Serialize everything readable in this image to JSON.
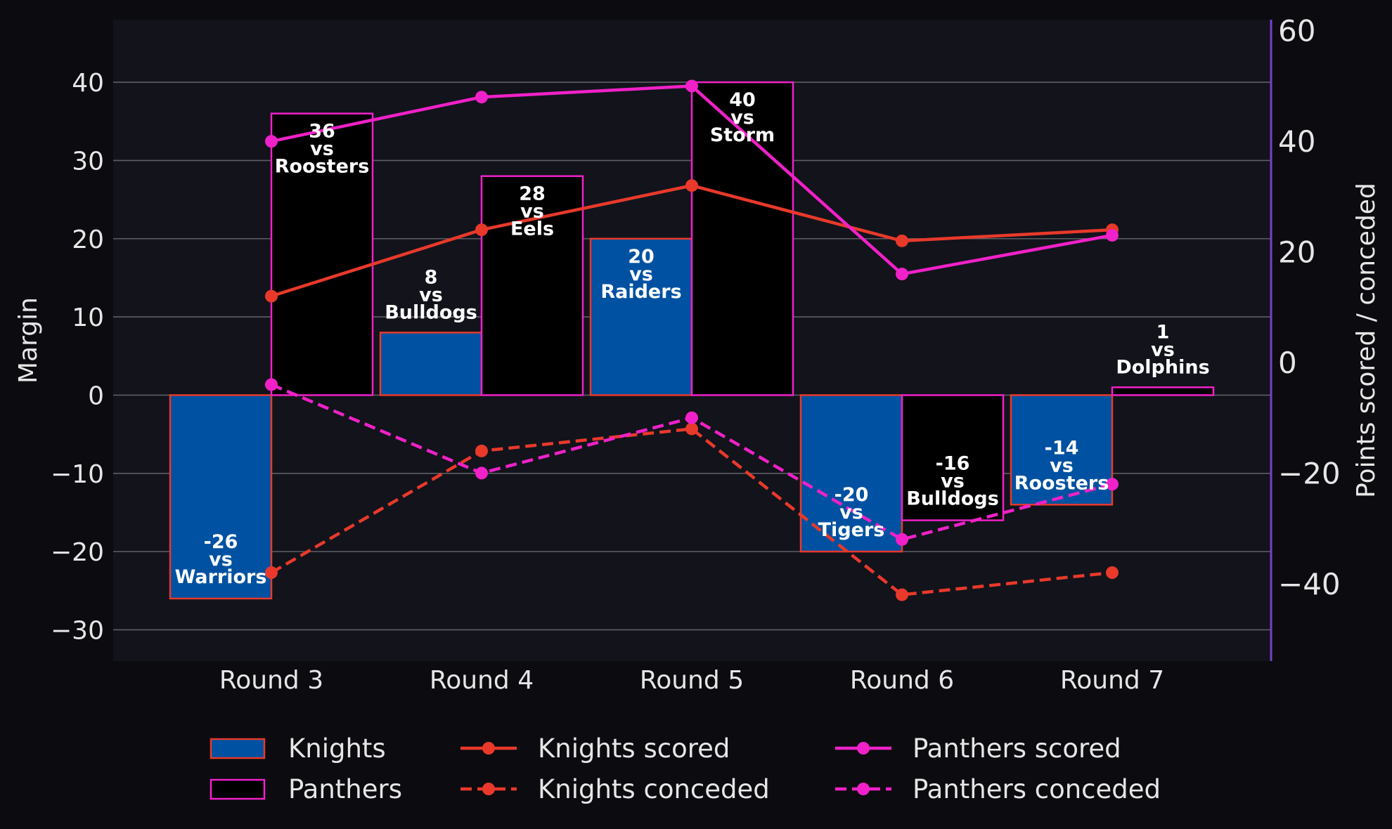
{
  "chart_data": {
    "type": "bar",
    "categories": [
      "Round 3",
      "Round 4",
      "Round 5",
      "Round 6",
      "Round 7"
    ],
    "ylabel": "Margin",
    "y2label": "Points scored / conceded",
    "ylim": [
      -34,
      48
    ],
    "y2lim": [
      -54,
      62
    ],
    "yticks": [
      40,
      30,
      20,
      10,
      0,
      -10,
      -20,
      -30
    ],
    "y2ticks": [
      60,
      40,
      20,
      0,
      -20,
      -40
    ],
    "grid": true,
    "legend_position": "bottom",
    "series": [
      {
        "name": "Knights",
        "kind": "bar",
        "color": "#0051a1",
        "edge": "#e8392b",
        "values": [
          -26,
          8,
          20,
          -20,
          -14
        ],
        "opponents": [
          "Warriors",
          "Bulldogs",
          "Raiders",
          "Tigers",
          "Roosters"
        ]
      },
      {
        "name": "Panthers",
        "kind": "bar",
        "color": "#000000",
        "edge": "#f021c8",
        "values": [
          36,
          28,
          40,
          -16,
          1
        ],
        "opponents": [
          "Roosters",
          "Eels",
          "Storm",
          "Bulldogs",
          "Dolphins"
        ]
      },
      {
        "name": "Knights scored",
        "kind": "line",
        "axis": "right",
        "color": "#e8392b",
        "dash": false,
        "values": [
          12,
          24,
          32,
          22,
          24
        ]
      },
      {
        "name": "Knights conceded",
        "kind": "line",
        "axis": "right",
        "color": "#e8392b",
        "dash": true,
        "values": [
          -38,
          -16,
          -12,
          -42,
          -38
        ]
      },
      {
        "name": "Panthers scored",
        "kind": "line",
        "axis": "right",
        "color": "#f021c8",
        "dash": false,
        "values": [
          40,
          48,
          50,
          16,
          23
        ]
      },
      {
        "name": "Panthers conceded",
        "kind": "line",
        "axis": "right",
        "color": "#f021c8",
        "dash": true,
        "values": [
          -4,
          -20,
          -10,
          -32,
          -22
        ]
      }
    ],
    "bar_label_connector": "vs"
  },
  "colors": {
    "page_bg": "#0b0b10",
    "plot_bg": "#12131b",
    "grid": "#5e5e66",
    "text": "#e6e6e6",
    "right_axis": "#7a3fc8"
  }
}
